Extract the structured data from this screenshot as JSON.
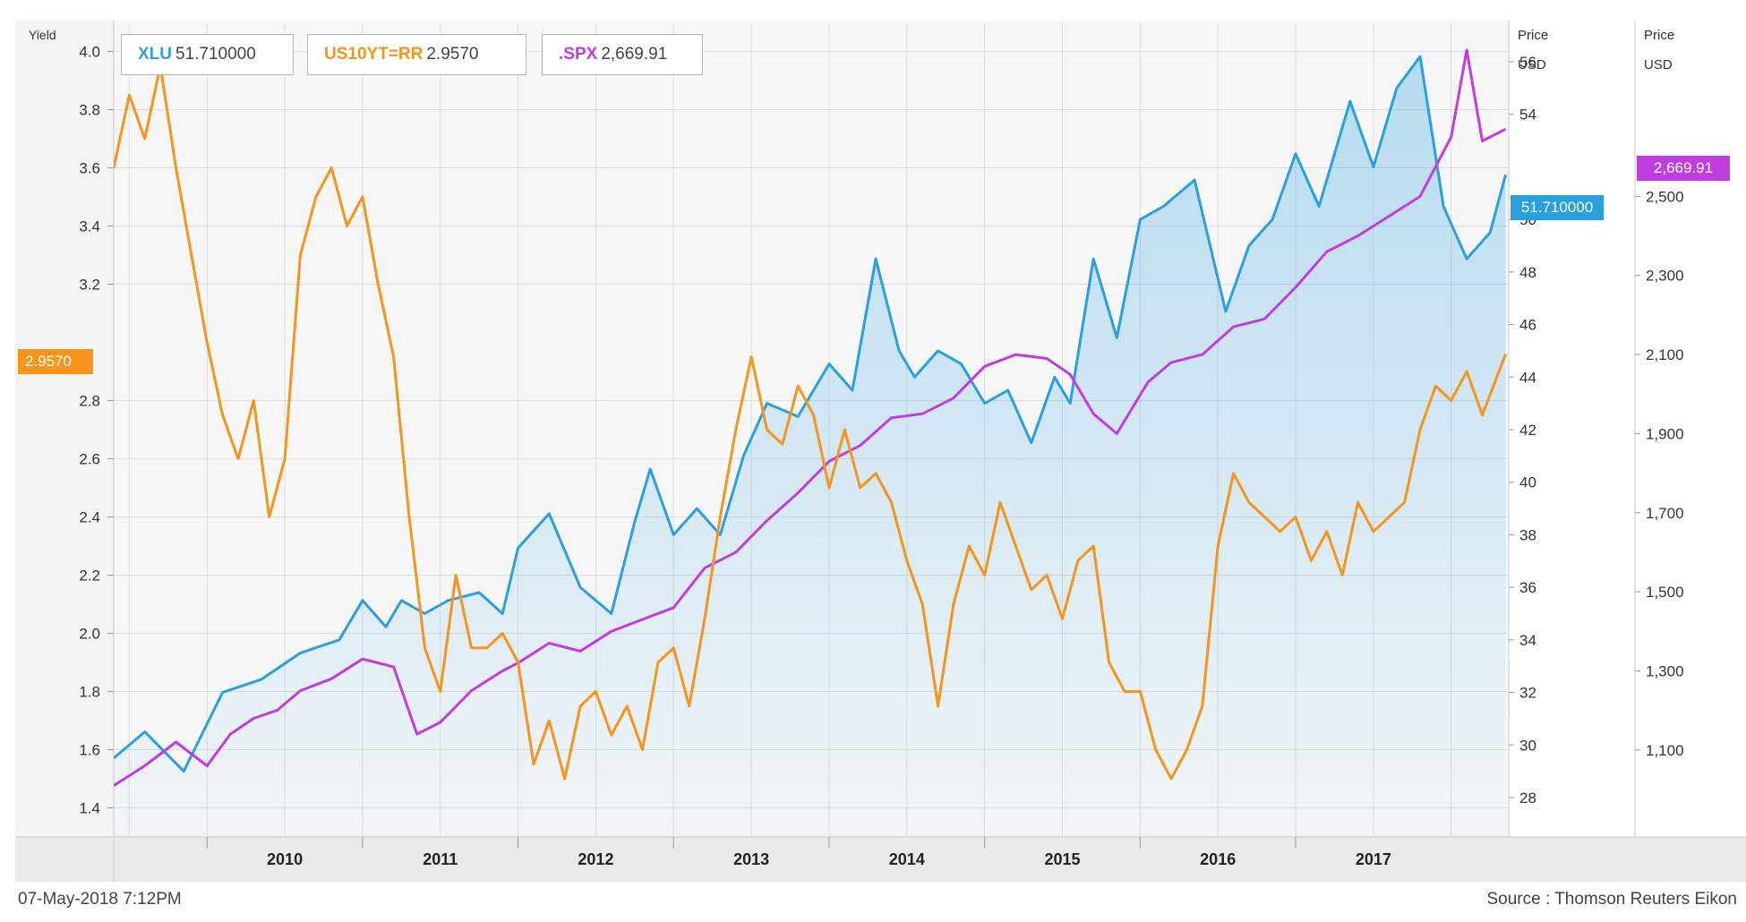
{
  "chart_data": {
    "type": "line",
    "x_axis": {
      "categories": [
        "2010",
        "2011",
        "2012",
        "2013",
        "2014",
        "2015",
        "2016",
        "2017"
      ],
      "range": [
        "2009-06",
        "2018-05"
      ]
    },
    "y_axes": {
      "yield": {
        "label": "Yield",
        "range": [
          1.3,
          4.1
        ],
        "ticks": [
          "4.0",
          "3.8",
          "3.6",
          "3.4",
          "3.2",
          "2.8",
          "2.6",
          "2.4",
          "2.2",
          "2.0",
          "1.8",
          "1.6",
          "1.4"
        ]
      },
      "price1": {
        "label_line1": "Price",
        "label_line2": "USD",
        "range": [
          26.5,
          57.5
        ],
        "ticks": [
          "56",
          "54",
          "50",
          "48",
          "46",
          "44",
          "42",
          "40",
          "38",
          "36",
          "34",
          "32",
          "30",
          "28"
        ]
      },
      "price2": {
        "label_line1": "Price",
        "label_line2": "USD",
        "range": [
          880,
          2940
        ],
        "ticks": [
          "2,500",
          "2,300",
          "2,100",
          "1,900",
          "1,700",
          "1,500",
          "1,300",
          "1,100"
        ]
      }
    },
    "series": [
      {
        "name": "XLU",
        "last": "51.710000",
        "color": "#2ba0e0",
        "axis": "price1",
        "fill": true,
        "x": [
          2009.4,
          2009.6,
          2009.85,
          2010.1,
          2010.35,
          2010.6,
          2010.85,
          2011.0,
          2011.15,
          2011.25,
          2011.4,
          2011.55,
          2011.75,
          2011.9,
          2012.0,
          2012.2,
          2012.4,
          2012.6,
          2012.75,
          2012.85,
          2013.0,
          2013.15,
          2013.3,
          2013.45,
          2013.6,
          2013.8,
          2014.0,
          2014.15,
          2014.3,
          2014.45,
          2014.55,
          2014.7,
          2014.85,
          2015.0,
          2015.15,
          2015.3,
          2015.45,
          2015.55,
          2015.7,
          2015.85,
          2016.0,
          2016.15,
          2016.35,
          2016.55,
          2016.7,
          2016.85,
          2017.0,
          2017.15,
          2017.35,
          2017.5,
          2017.65,
          2017.8,
          2017.95,
          2018.1,
          2018.25,
          2018.35
        ],
        "y": [
          29.5,
          30.5,
          29.0,
          32.0,
          32.5,
          33.5,
          34.0,
          35.5,
          34.5,
          35.5,
          35.0,
          35.5,
          35.8,
          35.0,
          37.5,
          38.8,
          36.0,
          35.0,
          38.5,
          40.5,
          38.0,
          39.0,
          38.0,
          41.0,
          43.0,
          42.5,
          44.5,
          43.5,
          48.5,
          45.0,
          44.0,
          45.0,
          44.5,
          43.0,
          43.5,
          41.5,
          44.0,
          43.0,
          48.5,
          45.5,
          50.0,
          50.5,
          51.5,
          46.5,
          49.0,
          50.0,
          52.5,
          50.5,
          54.5,
          52.0,
          55.0,
          56.2,
          50.5,
          48.5,
          49.5,
          51.7
        ]
      },
      {
        "name": ".SPX",
        "last": "2,669.91",
        "color": "#c03de0",
        "axis": "price2",
        "x": [
          2009.4,
          2009.6,
          2009.8,
          2010.0,
          2010.15,
          2010.3,
          2010.45,
          2010.6,
          2010.8,
          2011.0,
          2011.2,
          2011.35,
          2011.5,
          2011.7,
          2011.9,
          2012.0,
          2012.2,
          2012.4,
          2012.6,
          2012.8,
          2013.0,
          2013.2,
          2013.4,
          2013.6,
          2013.8,
          2014.0,
          2014.2,
          2014.4,
          2014.6,
          2014.8,
          2015.0,
          2015.2,
          2015.4,
          2015.55,
          2015.7,
          2015.85,
          2016.05,
          2016.2,
          2016.4,
          2016.6,
          2016.8,
          2017.0,
          2017.2,
          2017.4,
          2017.6,
          2017.8,
          2018.0,
          2018.1,
          2018.2,
          2018.35
        ],
        "y": [
          1010,
          1060,
          1120,
          1060,
          1140,
          1180,
          1200,
          1250,
          1280,
          1330,
          1310,
          1140,
          1170,
          1250,
          1300,
          1320,
          1370,
          1350,
          1400,
          1430,
          1460,
          1560,
          1600,
          1680,
          1750,
          1830,
          1870,
          1940,
          1950,
          1990,
          2070,
          2100,
          2090,
          2050,
          1950,
          1900,
          2030,
          2080,
          2100,
          2170,
          2190,
          2270,
          2360,
          2400,
          2450,
          2500,
          2650,
          2870,
          2640,
          2670
        ]
      },
      {
        "name": "US10YT=RR",
        "last": "2.9570",
        "color": "#f7941d",
        "axis": "yield",
        "x": [
          2009.4,
          2009.5,
          2009.6,
          2009.7,
          2009.8,
          2009.9,
          2010.0,
          2010.1,
          2010.2,
          2010.3,
          2010.4,
          2010.5,
          2010.6,
          2010.7,
          2010.8,
          2010.9,
          2011.0,
          2011.1,
          2011.2,
          2011.3,
          2011.4,
          2011.5,
          2011.6,
          2011.7,
          2011.8,
          2011.9,
          2012.0,
          2012.1,
          2012.2,
          2012.3,
          2012.4,
          2012.5,
          2012.6,
          2012.7,
          2012.8,
          2012.9,
          2013.0,
          2013.1,
          2013.2,
          2013.3,
          2013.4,
          2013.5,
          2013.6,
          2013.7,
          2013.8,
          2013.9,
          2014.0,
          2014.1,
          2014.2,
          2014.3,
          2014.4,
          2014.5,
          2014.6,
          2014.7,
          2014.8,
          2014.9,
          2015.0,
          2015.1,
          2015.2,
          2015.3,
          2015.4,
          2015.5,
          2015.6,
          2015.7,
          2015.8,
          2015.9,
          2016.0,
          2016.1,
          2016.2,
          2016.3,
          2016.4,
          2016.5,
          2016.6,
          2016.7,
          2016.8,
          2016.9,
          2017.0,
          2017.1,
          2017.2,
          2017.3,
          2017.4,
          2017.5,
          2017.6,
          2017.7,
          2017.8,
          2017.9,
          2018.0,
          2018.1,
          2018.2,
          2018.35
        ],
        "y": [
          3.6,
          3.85,
          3.7,
          3.95,
          3.6,
          3.3,
          3.0,
          2.75,
          2.6,
          2.8,
          2.4,
          2.6,
          3.3,
          3.5,
          3.6,
          3.4,
          3.5,
          3.2,
          2.95,
          2.4,
          1.95,
          1.8,
          2.2,
          1.95,
          1.95,
          2.0,
          1.9,
          1.55,
          1.7,
          1.5,
          1.75,
          1.8,
          1.65,
          1.75,
          1.6,
          1.9,
          1.95,
          1.75,
          2.05,
          2.4,
          2.7,
          2.95,
          2.7,
          2.65,
          2.85,
          2.75,
          2.5,
          2.7,
          2.5,
          2.55,
          2.45,
          2.25,
          2.1,
          1.75,
          2.1,
          2.3,
          2.2,
          2.45,
          2.3,
          2.15,
          2.2,
          2.05,
          2.25,
          2.3,
          1.9,
          1.8,
          1.8,
          1.6,
          1.5,
          1.6,
          1.75,
          2.3,
          2.55,
          2.45,
          2.4,
          2.35,
          2.4,
          2.25,
          2.35,
          2.2,
          2.45,
          2.35,
          2.4,
          2.45,
          2.7,
          2.85,
          2.8,
          2.9,
          2.75,
          2.96
        ]
      }
    ]
  },
  "footer": {
    "timestamp": "07-May-2018 7:12PM",
    "source": "Source : Thomson Reuters Eikon"
  }
}
